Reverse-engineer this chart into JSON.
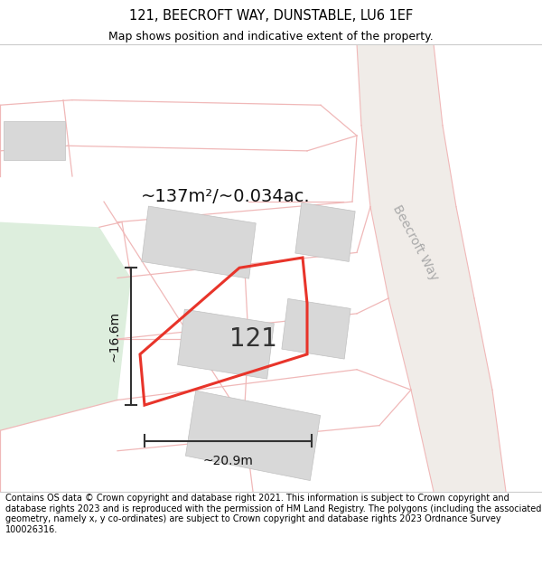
{
  "title": "121, BEECROFT WAY, DUNSTABLE, LU6 1EF",
  "subtitle": "Map shows position and indicative extent of the property.",
  "footer": "Contains OS data © Crown copyright and database right 2021. This information is subject to Crown copyright and database rights 2023 and is reproduced with the permission of HM Land Registry. The polygons (including the associated geometry, namely x, y co-ordinates) are subject to Crown copyright and database rights 2023 Ordnance Survey 100026316.",
  "area_label": "~137m²/~0.034ac.",
  "number_label": "121",
  "width_label": "~20.9m",
  "height_label": "~16.6m",
  "highlight_color": "#e8342a",
  "road_color": "#f0b8b8",
  "building_color": "#d8d8d8",
  "building_outline": "#c0c0c0",
  "green_color": "#ddeedd",
  "road_bg_color": "#f0ece8",
  "title_fontsize": 10.5,
  "subtitle_fontsize": 9,
  "footer_fontsize": 7.0,
  "area_fontsize": 14,
  "number_fontsize": 20,
  "measure_fontsize": 10,
  "street_fontsize": 10
}
